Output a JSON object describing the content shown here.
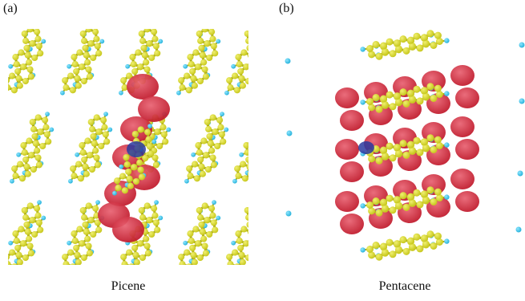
{
  "figure": {
    "panels": [
      {
        "label": "(a)",
        "caption": "Picene"
      },
      {
        "label": "(b)",
        "caption": "Pentacene"
      }
    ],
    "colors": {
      "carbon": "#c8c81e",
      "carbon_highlight": "#f0f070",
      "hydrogen": "#2ab4dc",
      "bond": "#a8a818",
      "isosurface": "#c0182a",
      "isosurface_highlight": "#e86070",
      "defect": "#2a3aa0"
    }
  }
}
